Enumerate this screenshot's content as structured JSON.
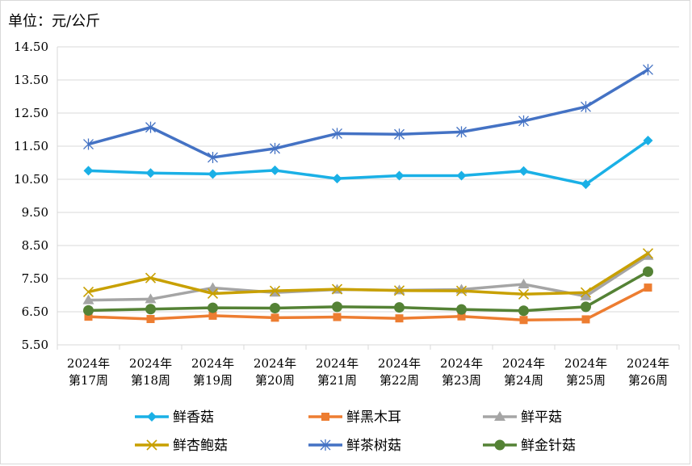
{
  "chart_data": {
    "type": "line",
    "title": "",
    "unit_label": "单位：元/公斤",
    "ylim": [
      5.5,
      14.5
    ],
    "yticks": [
      "14.50",
      "13.50",
      "12.50",
      "11.50",
      "10.50",
      "9.50",
      "8.50",
      "7.50",
      "6.50",
      "5.50"
    ],
    "ytick_values": [
      14.5,
      13.5,
      12.5,
      11.5,
      10.5,
      9.5,
      8.5,
      7.5,
      6.5,
      5.5
    ],
    "categories": [
      [
        "2024年",
        "第17周"
      ],
      [
        "2024年",
        "第18周"
      ],
      [
        "2024年",
        "第19周"
      ],
      [
        "2024年",
        "第20周"
      ],
      [
        "2024年",
        "第21周"
      ],
      [
        "2024年",
        "第22周"
      ],
      [
        "2024年",
        "第23周"
      ],
      [
        "2024年",
        "第24周"
      ],
      [
        "2024年",
        "第25周"
      ],
      [
        "2024年",
        "第26周"
      ]
    ],
    "grid": "horizontal",
    "legend_position": "bottom",
    "series": [
      {
        "name": "鲜香菇",
        "color": "#1ab0e6",
        "marker": "diamond",
        "values": [
          10.76,
          10.69,
          10.66,
          10.77,
          10.52,
          10.61,
          10.61,
          10.75,
          10.35,
          11.67
        ]
      },
      {
        "name": "鲜黑木耳",
        "color": "#ed7d31",
        "marker": "square",
        "values": [
          6.35,
          6.28,
          6.38,
          6.32,
          6.34,
          6.3,
          6.36,
          6.25,
          6.27,
          7.23
        ]
      },
      {
        "name": "鲜平菇",
        "color": "#a5a5a5",
        "marker": "triangle",
        "values": [
          6.85,
          6.88,
          7.22,
          7.08,
          7.17,
          7.15,
          7.17,
          7.33,
          6.97,
          8.19
        ]
      },
      {
        "name": "鲜杏鲍菇",
        "color": "#c8a000",
        "marker": "x",
        "values": [
          7.1,
          7.52,
          7.05,
          7.13,
          7.18,
          7.14,
          7.13,
          7.03,
          7.08,
          8.26
        ]
      },
      {
        "name": "鲜茶树菇",
        "color": "#4472c4",
        "marker": "star",
        "values": [
          11.56,
          12.07,
          11.16,
          11.43,
          11.88,
          11.86,
          11.93,
          12.26,
          12.69,
          13.81
        ]
      },
      {
        "name": "鲜金针菇",
        "color": "#548235",
        "marker": "circle",
        "values": [
          6.54,
          6.58,
          6.62,
          6.61,
          6.65,
          6.63,
          6.57,
          6.53,
          6.65,
          7.71
        ]
      }
    ]
  }
}
